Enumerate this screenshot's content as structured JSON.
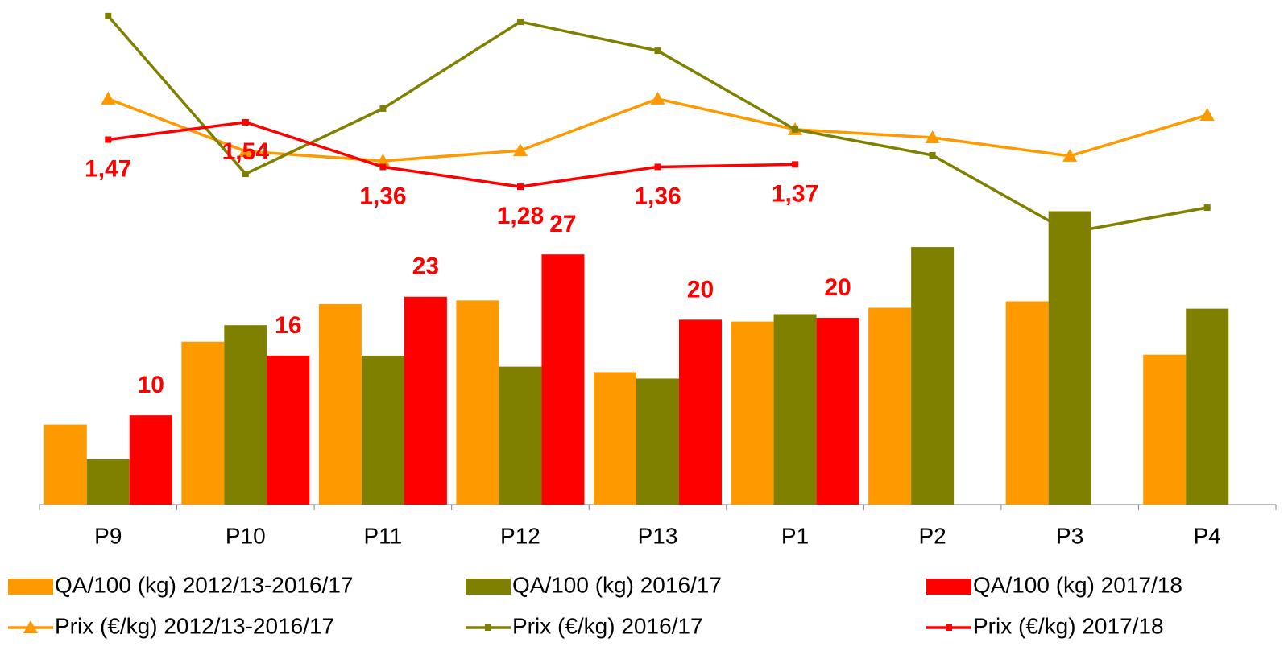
{
  "chart_data": {
    "type": "bar",
    "categories": [
      "P9",
      "P10",
      "P11",
      "P12",
      "P13",
      "P1",
      "P2",
      "P3",
      "P4"
    ],
    "ylim": [
      0,
      54
    ],
    "y2lim": [
      0,
      2.0
    ],
    "series": [
      {
        "name": "QA/100 (kg) 2012/13-2016/17",
        "type": "bar",
        "color": "#ff9900",
        "values": [
          8.7,
          17.7,
          21.8,
          22.2,
          14.4,
          19.9,
          21.4,
          22.1,
          16.3
        ]
      },
      {
        "name": "QA/100 (kg) 2016/17",
        "type": "bar",
        "color": "#808000",
        "values": [
          4.9,
          19.5,
          16.2,
          15.0,
          13.7,
          20.7,
          28.0,
          31.9,
          21.3
        ]
      },
      {
        "name": "QA/100 (kg) 2017/18",
        "type": "bar",
        "color": "#ff0000",
        "values": [
          9.7,
          16.2,
          22.6,
          27.2,
          20.1,
          20.3,
          null,
          null,
          null
        ],
        "value_labels": [
          "10",
          "16",
          "23",
          "27",
          "20",
          "20",
          null,
          null,
          null
        ]
      },
      {
        "name": "Prix (€/kg) 2012/13-2016/17",
        "type": "line",
        "axis": "y2",
        "marker": "triangle",
        "color": "#ff9900",
        "values": [
          1.634,
          1.423,
          1.384,
          1.426,
          1.634,
          1.511,
          1.478,
          1.404,
          1.569
        ]
      },
      {
        "name": "Prix (€/kg) 2016/17",
        "type": "line",
        "axis": "y2",
        "marker": "square",
        "color": "#808000",
        "values": [
          1.968,
          1.332,
          1.595,
          1.945,
          1.828,
          1.511,
          1.407,
          1.096,
          1.196
        ]
      },
      {
        "name": "Prix (€/kg) 2017/18",
        "type": "line",
        "axis": "y2",
        "marker": "square",
        "color": "#ff0000",
        "values": [
          1.47,
          1.54,
          1.36,
          1.28,
          1.36,
          1.37,
          null,
          null,
          null
        ],
        "value_labels": [
          "1,47",
          "1,54",
          "1,36",
          "1,28",
          "1,36",
          "1,37",
          null,
          null,
          null
        ]
      }
    ]
  }
}
